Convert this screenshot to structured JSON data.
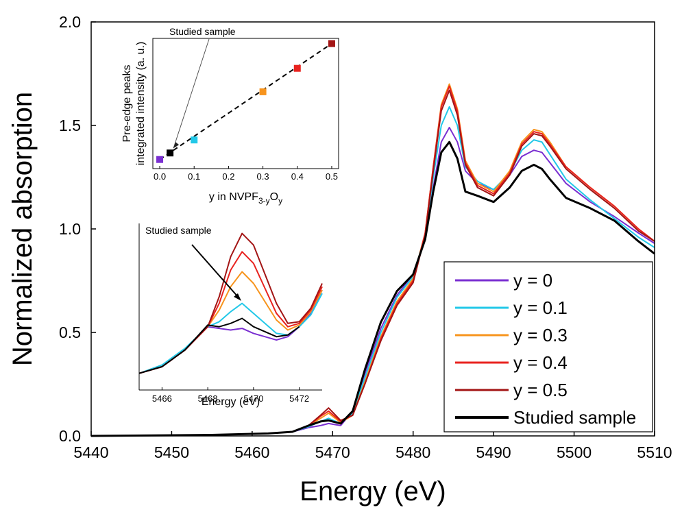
{
  "chart_data": [
    {
      "type": "line",
      "xlabel": "Energy (eV)",
      "ylabel": "Normalized absorption",
      "xlim": [
        5440,
        5510
      ],
      "ylim": [
        0,
        2.0
      ],
      "xticks": [
        "5440",
        "5450",
        "5460",
        "5470",
        "5480",
        "5490",
        "5500",
        "5510"
      ],
      "yticks": [
        "0.0",
        "0.5",
        "1.0",
        "1.5",
        "2.0"
      ],
      "grid": false,
      "legend": "bottom-right",
      "series": [
        {
          "name": "y = 0",
          "color": "#7a2fd1",
          "x": [
            5440,
            5455,
            5462,
            5465,
            5467,
            5468.5,
            5469.5,
            5471,
            5472.5,
            5474,
            5476,
            5478,
            5480,
            5481.5,
            5482.5,
            5483.5,
            5484.5,
            5485.5,
            5486.5,
            5488,
            5490,
            5492,
            5493.5,
            5495,
            5496,
            5497,
            5499,
            5502,
            5505,
            5508,
            5510
          ],
          "y": [
            0.0,
            0.005,
            0.012,
            0.02,
            0.04,
            0.05,
            0.06,
            0.05,
            0.12,
            0.3,
            0.52,
            0.68,
            0.78,
            0.95,
            1.2,
            1.42,
            1.49,
            1.42,
            1.28,
            1.22,
            1.19,
            1.26,
            1.35,
            1.38,
            1.37,
            1.32,
            1.22,
            1.13,
            1.06,
            0.98,
            0.93
          ]
        },
        {
          "name": "y = 0.1",
          "color": "#22c8e8",
          "x": [
            5440,
            5455,
            5462,
            5465,
            5467,
            5468.5,
            5469.5,
            5471,
            5472.5,
            5474,
            5476,
            5478,
            5480,
            5481.5,
            5482.5,
            5483.5,
            5484.5,
            5485.5,
            5486.5,
            5488,
            5490,
            5492,
            5493.5,
            5495,
            5496,
            5497,
            5499,
            5502,
            5505,
            5508,
            5510
          ],
          "y": [
            0.0,
            0.005,
            0.012,
            0.02,
            0.045,
            0.07,
            0.085,
            0.06,
            0.11,
            0.28,
            0.5,
            0.67,
            0.77,
            0.97,
            1.25,
            1.5,
            1.59,
            1.5,
            1.3,
            1.23,
            1.19,
            1.27,
            1.38,
            1.43,
            1.42,
            1.36,
            1.24,
            1.14,
            1.05,
            0.96,
            0.91
          ]
        },
        {
          "name": "y = 0.3",
          "color": "#f7941d",
          "x": [
            5440,
            5455,
            5462,
            5465,
            5467,
            5468.5,
            5469.5,
            5471,
            5472.5,
            5474,
            5476,
            5478,
            5480,
            5481.5,
            5482.5,
            5483.5,
            5484.5,
            5485.5,
            5486.5,
            5488,
            5490,
            5492,
            5493.5,
            5495,
            5496,
            5497,
            5499,
            5502,
            5505,
            5508,
            5510
          ],
          "y": [
            0.0,
            0.005,
            0.012,
            0.02,
            0.05,
            0.085,
            0.11,
            0.065,
            0.1,
            0.26,
            0.48,
            0.65,
            0.76,
            0.98,
            1.3,
            1.6,
            1.7,
            1.58,
            1.33,
            1.22,
            1.18,
            1.28,
            1.42,
            1.48,
            1.47,
            1.42,
            1.3,
            1.2,
            1.11,
            1.0,
            0.94
          ]
        },
        {
          "name": "y = 0.4",
          "color": "#e8231f",
          "x": [
            5440,
            5455,
            5462,
            5465,
            5467,
            5468.5,
            5469.5,
            5471,
            5472.5,
            5474,
            5476,
            5478,
            5480,
            5481.5,
            5482.5,
            5483.5,
            5484.5,
            5485.5,
            5486.5,
            5488,
            5490,
            5492,
            5493.5,
            5495,
            5496,
            5497,
            5499,
            5502,
            5505,
            5508,
            5510
          ],
          "y": [
            0.0,
            0.005,
            0.012,
            0.02,
            0.05,
            0.095,
            0.12,
            0.07,
            0.1,
            0.25,
            0.47,
            0.64,
            0.75,
            0.98,
            1.3,
            1.59,
            1.69,
            1.57,
            1.32,
            1.21,
            1.17,
            1.27,
            1.41,
            1.47,
            1.46,
            1.41,
            1.3,
            1.2,
            1.11,
            1.0,
            0.94
          ]
        },
        {
          "name": "y = 0.5",
          "color": "#a31515",
          "x": [
            5440,
            5455,
            5462,
            5465,
            5467,
            5468.5,
            5469.5,
            5471,
            5472.5,
            5474,
            5476,
            5478,
            5480,
            5481.5,
            5482.5,
            5483.5,
            5484.5,
            5485.5,
            5486.5,
            5488,
            5490,
            5492,
            5493.5,
            5495,
            5496,
            5497,
            5499,
            5502,
            5505,
            5508,
            5510
          ],
          "y": [
            0.0,
            0.005,
            0.012,
            0.02,
            0.05,
            0.1,
            0.135,
            0.075,
            0.1,
            0.25,
            0.46,
            0.63,
            0.74,
            0.97,
            1.28,
            1.57,
            1.67,
            1.55,
            1.31,
            1.2,
            1.16,
            1.26,
            1.4,
            1.46,
            1.45,
            1.4,
            1.29,
            1.19,
            1.1,
            0.99,
            0.94
          ]
        },
        {
          "name": "Studied sample",
          "color": "#000000",
          "x": [
            5440,
            5455,
            5462,
            5465,
            5467,
            5468.5,
            5469.5,
            5471,
            5472.5,
            5474,
            5476,
            5478,
            5480,
            5481.5,
            5482.5,
            5483.5,
            5484.5,
            5485.5,
            5486.5,
            5488,
            5490,
            5492,
            5493.5,
            5495,
            5496,
            5497,
            5499,
            5502,
            5505,
            5508,
            5510
          ],
          "y": [
            0.0,
            0.005,
            0.012,
            0.02,
            0.05,
            0.07,
            0.075,
            0.06,
            0.12,
            0.32,
            0.55,
            0.7,
            0.78,
            0.95,
            1.18,
            1.37,
            1.42,
            1.34,
            1.18,
            1.16,
            1.13,
            1.2,
            1.28,
            1.31,
            1.29,
            1.24,
            1.15,
            1.1,
            1.04,
            0.94,
            0.88
          ]
        }
      ]
    },
    {
      "type": "scatter",
      "xlabel": "y in NVPF",
      "xlabel_sub": "3-y",
      "xlabel_mid": "O",
      "xlabel_sub2": "y",
      "ylabel_line1": "Pre-edge peaks",
      "ylabel_line2": "integrated intensity (a. u.)",
      "xlim": [
        -0.02,
        0.52
      ],
      "ylim": [
        0,
        1
      ],
      "xticks": [
        "0.0",
        "0.1",
        "0.2",
        "0.3",
        "0.4",
        "0.5"
      ],
      "annotation": "Studied sample",
      "points": [
        {
          "x": 0.0,
          "y": 0.07,
          "color": "#7a2fd1"
        },
        {
          "x": 0.03,
          "y": 0.12,
          "color": "#000000"
        },
        {
          "x": 0.1,
          "y": 0.22,
          "color": "#22c8e8"
        },
        {
          "x": 0.3,
          "y": 0.59,
          "color": "#f7941d"
        },
        {
          "x": 0.4,
          "y": 0.77,
          "color": "#e8231f"
        },
        {
          "x": 0.5,
          "y": 0.96,
          "color": "#a31515"
        }
      ],
      "fit_line": {
        "x": [
          0.0,
          0.5
        ],
        "y": [
          0.07,
          0.96
        ]
      }
    },
    {
      "type": "line",
      "xlabel": "Energy (eV)",
      "xlim": [
        5465,
        5473
      ],
      "ylim": [
        0,
        1
      ],
      "xticks": [
        "5466",
        "5468",
        "5470",
        "5472"
      ],
      "annotation": "Studied sample",
      "series": [
        {
          "name": "y = 0",
          "color": "#7a2fd1",
          "x": [
            5465,
            5466,
            5467,
            5468,
            5468.5,
            5469,
            5469.5,
            5470,
            5471,
            5471.5,
            5472,
            5472.5,
            5473
          ],
          "y": [
            0.1,
            0.14,
            0.24,
            0.38,
            0.37,
            0.36,
            0.37,
            0.34,
            0.3,
            0.32,
            0.38,
            0.46,
            0.6
          ]
        },
        {
          "name": "y = 0.1",
          "color": "#22c8e8",
          "x": [
            5465,
            5466,
            5467,
            5468,
            5468.5,
            5469,
            5469.5,
            5470,
            5471,
            5471.5,
            5472,
            5472.5,
            5473
          ],
          "y": [
            0.1,
            0.15,
            0.25,
            0.38,
            0.41,
            0.47,
            0.52,
            0.46,
            0.34,
            0.33,
            0.38,
            0.45,
            0.58
          ]
        },
        {
          "name": "y = 0.3",
          "color": "#f7941d",
          "x": [
            5465,
            5466,
            5467,
            5468,
            5468.5,
            5469,
            5469.5,
            5470,
            5471,
            5471.5,
            5472,
            5472.5,
            5473
          ],
          "y": [
            0.1,
            0.14,
            0.24,
            0.38,
            0.48,
            0.62,
            0.71,
            0.64,
            0.42,
            0.36,
            0.39,
            0.47,
            0.6
          ]
        },
        {
          "name": "y = 0.4",
          "color": "#e8231f",
          "x": [
            5465,
            5466,
            5467,
            5468,
            5468.5,
            5469,
            5469.5,
            5470,
            5471,
            5471.5,
            5472,
            5472.5,
            5473
          ],
          "y": [
            0.1,
            0.14,
            0.24,
            0.38,
            0.52,
            0.72,
            0.83,
            0.76,
            0.46,
            0.38,
            0.4,
            0.48,
            0.62
          ]
        },
        {
          "name": "y = 0.5",
          "color": "#a31515",
          "x": [
            5465,
            5466,
            5467,
            5468,
            5468.5,
            5469,
            5469.5,
            5470,
            5471,
            5471.5,
            5472,
            5472.5,
            5473
          ],
          "y": [
            0.1,
            0.14,
            0.24,
            0.38,
            0.56,
            0.8,
            0.94,
            0.87,
            0.52,
            0.4,
            0.41,
            0.49,
            0.64
          ]
        },
        {
          "name": "Studied sample",
          "color": "#000000",
          "x": [
            5465,
            5466,
            5467,
            5468,
            5468.5,
            5469,
            5469.5,
            5470,
            5471,
            5471.5,
            5472
          ],
          "y": [
            0.1,
            0.14,
            0.24,
            0.39,
            0.38,
            0.4,
            0.43,
            0.38,
            0.32,
            0.33,
            0.38
          ]
        }
      ]
    }
  ]
}
